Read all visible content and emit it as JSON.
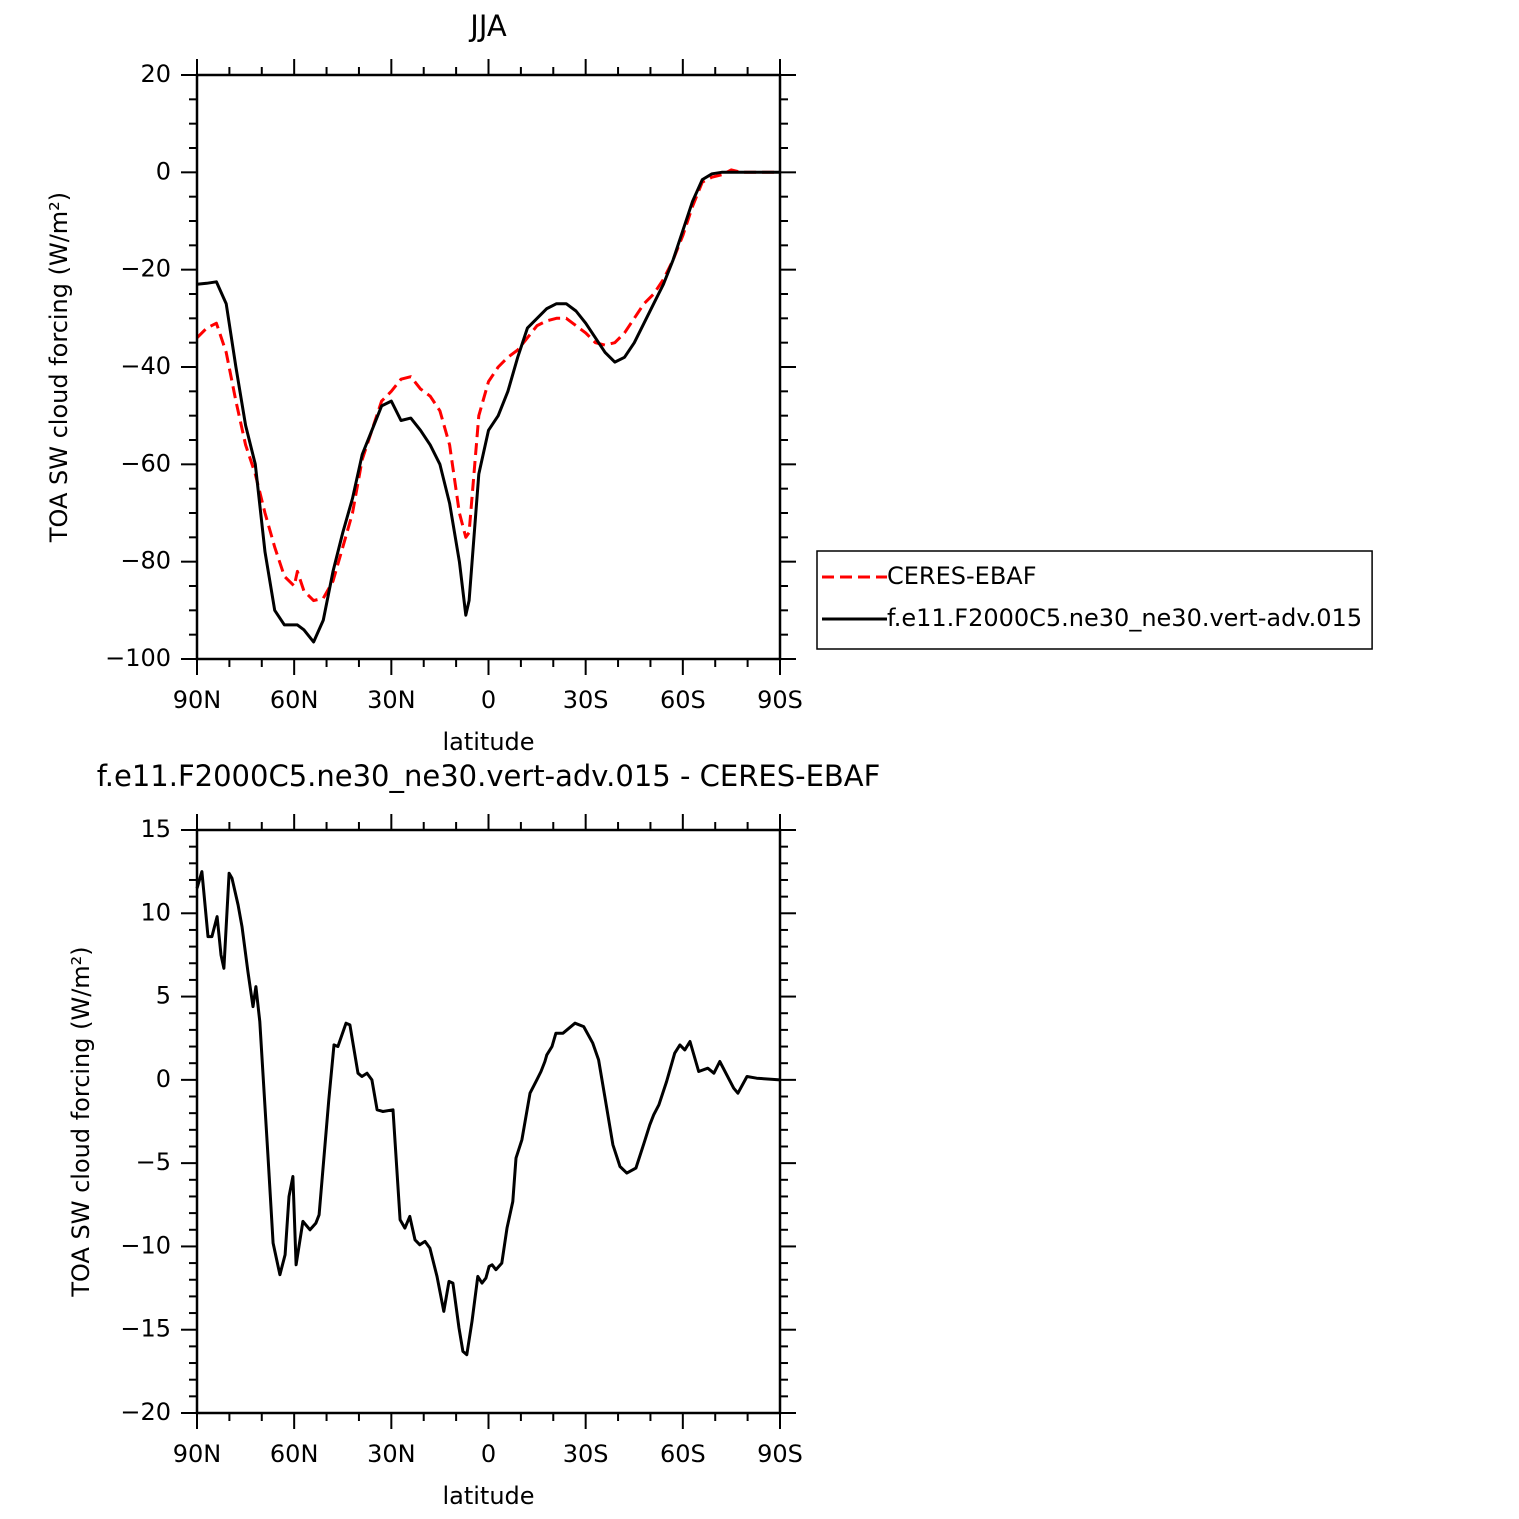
{
  "chart_data": [
    {
      "type": "line",
      "title": "JJA",
      "x_label": "latitude",
      "y_label": "TOA SW cloud forcing (W/m²)",
      "xlim": [
        90,
        -90
      ],
      "xticks": [
        {
          "value": 90,
          "label": "90N"
        },
        {
          "value": 60,
          "label": "60N"
        },
        {
          "value": 30,
          "label": "30N"
        },
        0,
        {
          "value": -30,
          "label": "30S"
        },
        {
          "value": -60,
          "label": "60S"
        },
        {
          "value": -90,
          "label": "90S"
        }
      ],
      "ylim": [
        -100,
        20
      ],
      "yticks": [
        {
          "value": -100,
          "label": "−100"
        },
        {
          "value": -80,
          "label": "−80"
        },
        {
          "value": -60,
          "label": "−60"
        },
        {
          "value": -40,
          "label": "−40"
        },
        {
          "value": -20,
          "label": "−20"
        },
        0,
        20
      ],
      "legend": "right",
      "x": [
        90,
        87,
        84,
        81,
        78,
        75,
        72,
        69,
        66,
        63,
        60,
        59,
        57,
        54,
        51,
        48,
        45,
        42,
        39,
        36,
        33,
        30,
        27,
        24,
        21,
        18,
        15,
        12,
        9,
        7,
        6,
        3,
        0,
        -3,
        -6,
        -9,
        -12,
        -15,
        -18,
        -21,
        -24,
        -27,
        -30,
        -33,
        -36,
        -39,
        -42,
        -45,
        -48,
        -51,
        -54,
        -57,
        -60,
        -63,
        -66,
        -69,
        -72,
        -75,
        -78,
        -81,
        -84,
        -87,
        -90
      ],
      "series": [
        {
          "name": "CERES-EBAF",
          "color": "#ff0000",
          "dash": "dashed",
          "values": [
            -34,
            -32,
            -31,
            -37,
            -47,
            -56,
            -62,
            -70,
            -77,
            -83,
            -85,
            -82,
            -86,
            -88,
            -87.5,
            -84,
            -77,
            -70,
            -59,
            -53,
            -47,
            -45,
            -42.5,
            -42,
            -44.5,
            -46,
            -49,
            -56,
            -70,
            -75,
            -74,
            -50,
            -43,
            -40,
            -38,
            -36.5,
            -34,
            -31.5,
            -30.5,
            -30,
            -30,
            -31.5,
            -33,
            -35,
            -35.5,
            -35,
            -33,
            -30,
            -27,
            -25,
            -22,
            -18,
            -13,
            -7,
            -2,
            -1,
            -0.5,
            0.5,
            0,
            0,
            0,
            0,
            0
          ]
        },
        {
          "name": "f.e11.F2000C5.ne30_ne30.vert-adv.015",
          "color": "#000000",
          "dash": "solid",
          "values": [
            -23,
            -22.8,
            -22.5,
            -27,
            -40,
            -52,
            -60,
            -78,
            -90,
            -93,
            -93,
            -93,
            -94,
            -96.5,
            -92,
            -82,
            -74,
            -67,
            -58,
            -53,
            -48,
            -47,
            -51,
            -50.5,
            -53,
            -56,
            -60,
            -68,
            -80,
            -91,
            -88,
            -62,
            -53,
            -50,
            -45,
            -38,
            -32,
            -30,
            -28,
            -27,
            -27,
            -28.5,
            -31,
            -34,
            -37,
            -39,
            -38,
            -35,
            -31,
            -27,
            -23,
            -18,
            -12,
            -6,
            -1.5,
            -0.3,
            0,
            0,
            0,
            0,
            0,
            0,
            0
          ]
        }
      ]
    },
    {
      "type": "line",
      "title": "f.e11.F2000C5.ne30_ne30.vert-adv.015 - CERES-EBAF",
      "x_label": "latitude",
      "y_label": "TOA SW cloud forcing (W/m²)",
      "xlim": [
        90,
        -90
      ],
      "xticks": [
        {
          "value": 90,
          "label": "90N"
        },
        {
          "value": 60,
          "label": "60N"
        },
        {
          "value": 30,
          "label": "30N"
        },
        0,
        {
          "value": -30,
          "label": "30S"
        },
        {
          "value": -60,
          "label": "60S"
        },
        {
          "value": -90,
          "label": "90S"
        }
      ],
      "ylim": [
        -20,
        15
      ],
      "yticks": [
        {
          "value": -20,
          "label": "−20"
        },
        {
          "value": -15,
          "label": "−15"
        },
        {
          "value": -10,
          "label": "−10"
        },
        {
          "value": -5,
          "label": "−5"
        },
        0,
        5,
        10,
        15
      ],
      "color": "#000000",
      "x": [
        90,
        88.5,
        86.6,
        85.4,
        83.8,
        82.6,
        81.7,
        80.1,
        79.2,
        77.3,
        76.1,
        74.3,
        72.7,
        71.8,
        70.6,
        68.1,
        66.5,
        64.4,
        62.8,
        61.6,
        60.4,
        59.4,
        57.3,
        55.1,
        53.3,
        52.3,
        49.3,
        47.7,
        46.5,
        44,
        42.8,
        40.3,
        39.1,
        37.5,
        36,
        34.4,
        32.6,
        29.5,
        27.3,
        25.8,
        24.3,
        22.7,
        21.2,
        19.6,
        18.1,
        15.9,
        13.8,
        12.2,
        11,
        9.1,
        7.9,
        6.7,
        5.1,
        3.3,
        2,
        0.8,
        -0.2,
        -1.1,
        -2.3,
        -4.1,
        -5.7,
        -7.5,
        -8.5,
        -10.3,
        -12.8,
        -14.9,
        -16.2,
        -17.4,
        -18,
        -19.6,
        -20.8,
        -23,
        -26.7,
        -29.4,
        -32.2,
        -34,
        -35.9,
        -38.4,
        -40.6,
        -42.7,
        -45.5,
        -48,
        -49.8,
        -51,
        -52.6,
        -55,
        -57.5,
        -59.1,
        -60.6,
        -62.2,
        -64.9,
        -67.7,
        -69.6,
        -71.4,
        -75.7,
        -77,
        -79.8,
        -82.8,
        -90
      ],
      "values": [
        11.5,
        12.5,
        8.6,
        8.6,
        9.8,
        7.5,
        6.7,
        12.4,
        12.1,
        10.5,
        9.2,
        6.5,
        4.4,
        5.6,
        3.5,
        -4.5,
        -9.8,
        -11.7,
        -10.5,
        -7,
        -5.8,
        -11.1,
        -8.5,
        -9,
        -8.6,
        -8.1,
        -1.2,
        2.1,
        2,
        3.4,
        3.3,
        0.4,
        0.2,
        0.4,
        0,
        -1.8,
        -1.9,
        -1.8,
        -8.4,
        -8.9,
        -8.2,
        -9.6,
        -9.9,
        -9.7,
        -10.1,
        -11.8,
        -13.9,
        -12.1,
        -12.2,
        -14.9,
        -16.3,
        -16.5,
        -14.5,
        -11.8,
        -12.2,
        -11.9,
        -11.2,
        -11.1,
        -11.4,
        -11,
        -8.9,
        -7.3,
        -4.7,
        -3.6,
        -0.8,
        0,
        0.5,
        1.1,
        1.5,
        2,
        2.8,
        2.8,
        3.4,
        3.2,
        2.2,
        1.2,
        -1,
        -3.9,
        -5.2,
        -5.6,
        -5.3,
        -3.8,
        -2.7,
        -2.1,
        -1.5,
        -0.1,
        1.6,
        2.1,
        1.8,
        2.3,
        0.5,
        0.7,
        0.4,
        1.1,
        -0.5,
        -0.8,
        0.2,
        0.1,
        0
      ]
    }
  ]
}
